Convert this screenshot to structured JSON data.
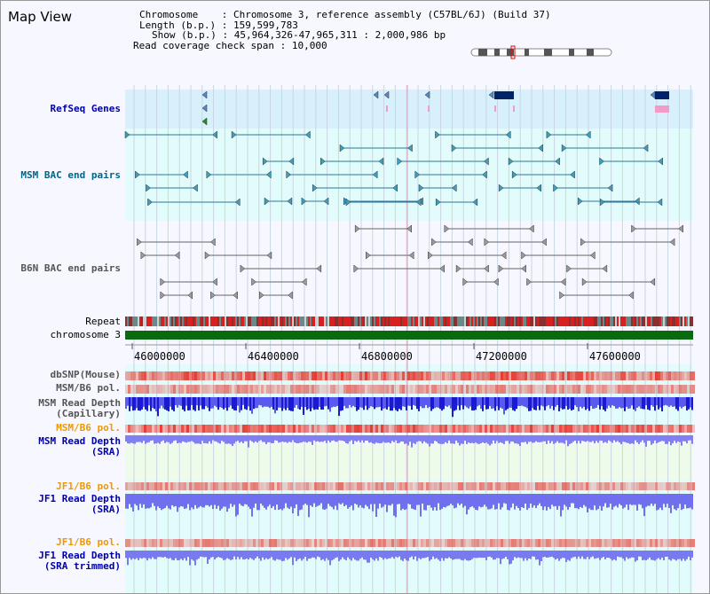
{
  "view_title": "Map View",
  "info": {
    "chromosome_label": "Chromosome",
    "chromosome_value": "Chromosome 3, reference assembly (C57BL/6J) (Build 37)",
    "length_label": "Length (b.p.)",
    "length_value": "159,599,783",
    "show_label": "Show (b.p.)",
    "show_value": "45,964,326-47,965,311 : 2,000,986 bp",
    "coverage_label": "Read coverage check span",
    "coverage_value": "10,000"
  },
  "tracks": {
    "refseq": "RefSeq Genes",
    "msm_bac": "MSM BAC end pairs",
    "b6n_bac": "B6N BAC end pairs",
    "repeat": "Repeat",
    "chromosome": "chromosome 3",
    "dbsnp": "dbSNP(Mouse)",
    "msm_b6_pol_1": "MSM/B6 pol.",
    "msm_depth_cap": "MSM Read Depth\n(Capillary)",
    "msm_b6_pol_2": "MSM/B6 pol.",
    "msm_depth_sra": "MSM Read Depth\n(SRA)",
    "jf1_b6_pol_1": "JF1/B6 pol.",
    "jf1_depth_sra": "JF1 Read Depth\n(SRA)",
    "jf1_b6_pol_2": "JF1/B6 pol.",
    "jf1_depth_trim": "JF1 Read Depth\n(SRA trimmed)"
  },
  "axis_ticks": [
    "46000000",
    "46400000",
    "46800000",
    "47200000",
    "47600000"
  ],
  "colors": {
    "refseq_label": "#0000aa",
    "msm_label": "#006688",
    "b6n_label": "#555555",
    "pol_orange": "#ee9900",
    "depth_blue": "#0000aa",
    "chromosome_bar": "#0a6a10",
    "refseq_bg": "#d8f0fb",
    "track_bg": "#e2fbfb"
  }
}
